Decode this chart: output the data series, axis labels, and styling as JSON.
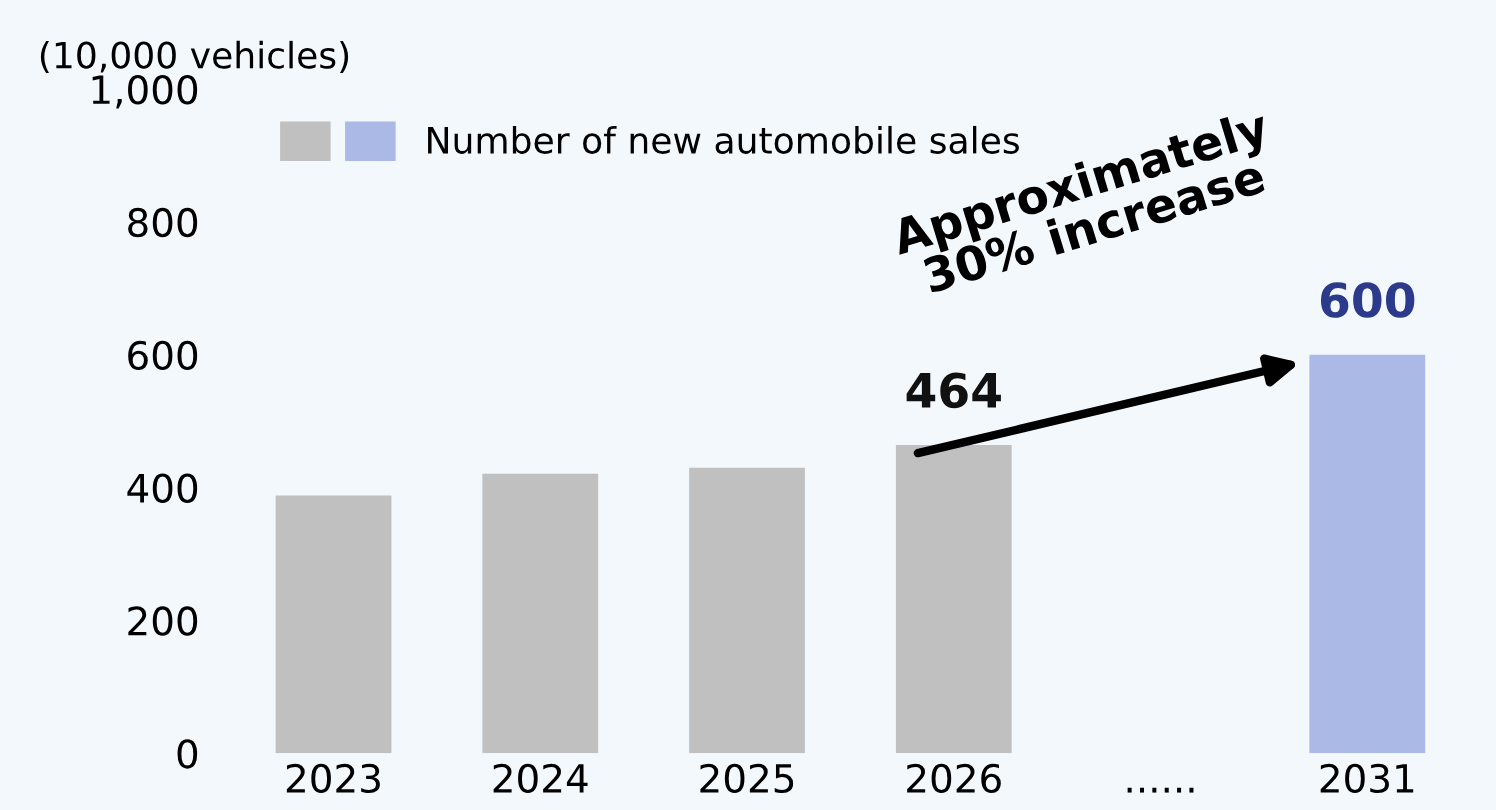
{
  "chart_data": {
    "type": "bar",
    "ylabel": "(10,000 vehicles)",
    "categories": [
      "2023",
      "2024",
      "2025",
      "2026",
      "......",
      "2031"
    ],
    "series": [
      {
        "name": "Number of new automobile sales",
        "values": [
          388,
          421,
          430,
          464,
          null,
          600
        ],
        "colors": [
          "#c0c0c0",
          "#c0c0c0",
          "#c0c0c0",
          "#c0c0c0",
          "#c0c0c0",
          "#aab9e6"
        ],
        "value_labels": [
          null,
          null,
          null,
          "464",
          null,
          "600"
        ]
      }
    ],
    "ylim": [
      0,
      1000
    ],
    "yticks": [
      0,
      200,
      400,
      600,
      800,
      {
        "value": 1000,
        "label": "1,000"
      }
    ],
    "grid": false,
    "legend": "top left",
    "annotations": [
      {
        "text": "Approximately\n30% increase",
        "x": "2031",
        "y": 600
      }
    ]
  }
}
